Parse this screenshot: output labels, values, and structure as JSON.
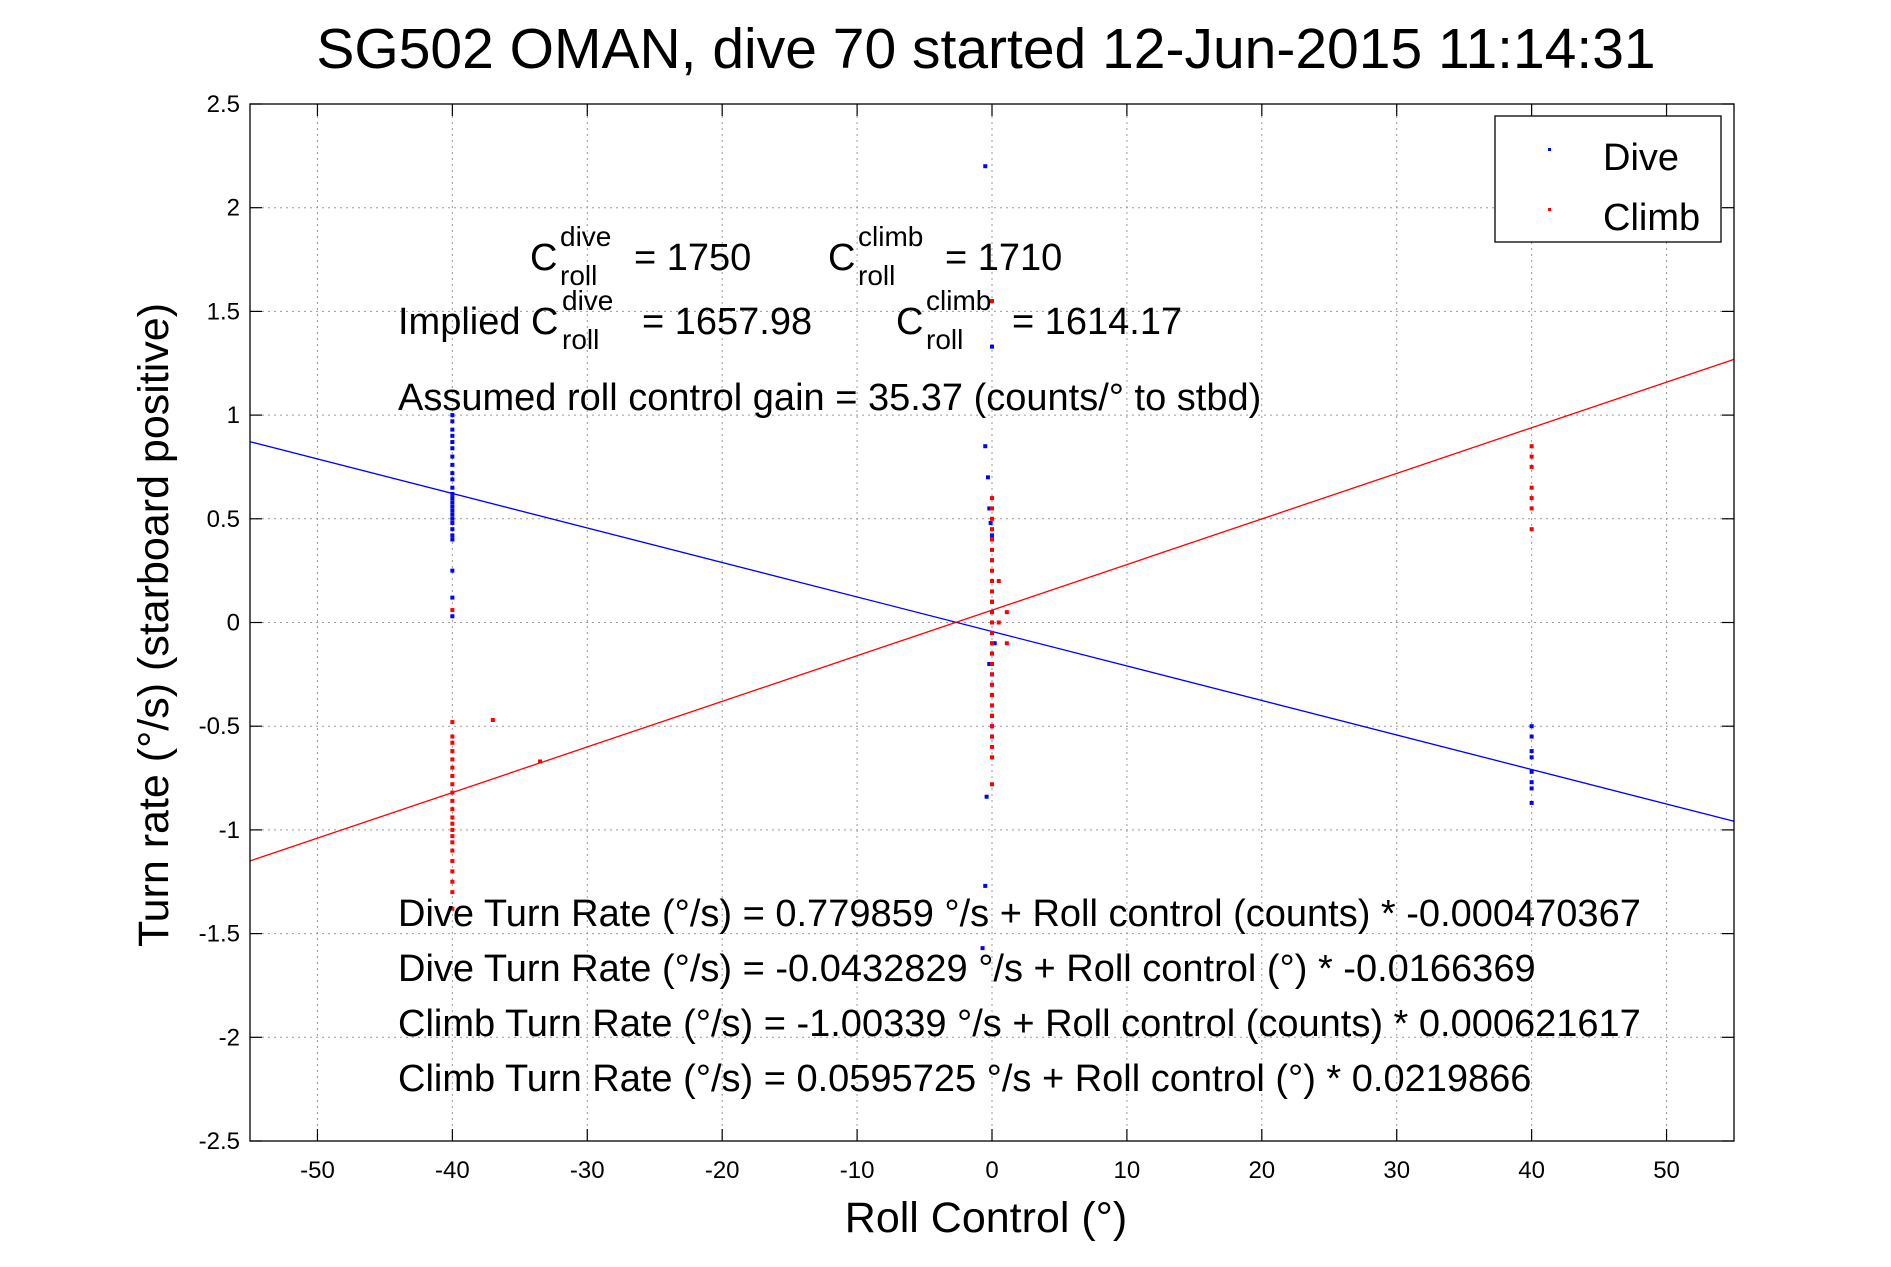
{
  "chart_data": {
    "type": "scatter",
    "title": "SG502 OMAN, dive 70 started 12-Jun-2015 11:14:31",
    "xlabel": "Roll Control (°)",
    "ylabel": "Turn rate (°/s)  (starboard positive)",
    "xlim": [
      -55,
      55
    ],
    "ylim": [
      -2.5,
      2.5
    ],
    "xticks": [
      -50,
      -40,
      -30,
      -20,
      -10,
      0,
      10,
      20,
      30,
      40,
      50
    ],
    "yticks": [
      -2.5,
      -2,
      -1.5,
      -1,
      -0.5,
      0,
      0.5,
      1,
      1.5,
      2,
      2.5
    ],
    "xtick_labels": [
      "-50",
      "-40",
      "-30",
      "-20",
      "-10",
      "0",
      "10",
      "20",
      "30",
      "40",
      "50"
    ],
    "ytick_labels": [
      "-2.5",
      "-2",
      "-1.5",
      "-1",
      "-0.5",
      "0",
      "0.5",
      "1",
      "1.5",
      "2",
      "2.5"
    ],
    "grid": true,
    "legend_position": "top-right",
    "series": [
      {
        "name": "Dive",
        "color": "#0000ff",
        "points": [
          [
            -40,
            1.0
          ],
          [
            -40,
            0.97
          ],
          [
            -40,
            0.93
          ],
          [
            -40,
            0.9
          ],
          [
            -40,
            0.87
          ],
          [
            -40,
            0.84
          ],
          [
            -40,
            0.8
          ],
          [
            -40,
            0.76
          ],
          [
            -40,
            0.72
          ],
          [
            -40,
            0.69
          ],
          [
            -40,
            0.65
          ],
          [
            -40,
            0.62
          ],
          [
            -40,
            0.6
          ],
          [
            -40,
            0.58
          ],
          [
            -40,
            0.56
          ],
          [
            -40,
            0.54
          ],
          [
            -40,
            0.52
          ],
          [
            -40,
            0.5
          ],
          [
            -40,
            0.48
          ],
          [
            -40,
            0.45
          ],
          [
            -40,
            0.42
          ],
          [
            -40,
            0.4
          ],
          [
            -40,
            0.25
          ],
          [
            -40,
            0.12
          ],
          [
            -40,
            0.03
          ],
          [
            -0.5,
            2.2
          ],
          [
            0,
            1.33
          ],
          [
            -0.5,
            0.85
          ],
          [
            -0.3,
            0.7
          ],
          [
            -0.2,
            0.55
          ],
          [
            -0.1,
            0.48
          ],
          [
            0,
            0.42
          ],
          [
            0,
            0.3
          ],
          [
            0,
            0.2
          ],
          [
            0,
            0.1
          ],
          [
            0,
            0.05
          ],
          [
            0,
            0.0
          ],
          [
            0,
            -0.05
          ],
          [
            0,
            -0.1
          ],
          [
            0,
            -0.15
          ],
          [
            0,
            -0.2
          ],
          [
            0,
            -0.25
          ],
          [
            0,
            -0.3
          ],
          [
            0,
            -0.35
          ],
          [
            0,
            -0.4
          ],
          [
            0,
            -0.45
          ],
          [
            0,
            -0.5
          ],
          [
            0,
            -0.55
          ],
          [
            0.2,
            -0.1
          ],
          [
            -0.2,
            -0.2
          ],
          [
            -0.4,
            -0.84
          ],
          [
            -0.5,
            -1.27
          ],
          [
            -0.7,
            -1.57
          ],
          [
            40,
            -0.5
          ],
          [
            40,
            -0.55
          ],
          [
            40,
            -0.62
          ],
          [
            40,
            -0.65
          ],
          [
            40,
            -0.72
          ],
          [
            40,
            -0.77
          ],
          [
            40,
            -0.8
          ],
          [
            40,
            -0.87
          ]
        ]
      },
      {
        "name": "Climb",
        "color": "#ff0000",
        "points": [
          [
            -40,
            0.06
          ],
          [
            -40,
            -0.48
          ],
          [
            -40,
            -0.55
          ],
          [
            -40,
            -0.58
          ],
          [
            -40,
            -0.62
          ],
          [
            -40,
            -0.66
          ],
          [
            -40,
            -0.7
          ],
          [
            -40,
            -0.74
          ],
          [
            -40,
            -0.78
          ],
          [
            -40,
            -0.82
          ],
          [
            -40,
            -0.86
          ],
          [
            -40,
            -0.9
          ],
          [
            -40,
            -0.94
          ],
          [
            -40,
            -0.97
          ],
          [
            -40,
            -1.0
          ],
          [
            -40,
            -1.03
          ],
          [
            -40,
            -1.06
          ],
          [
            -40,
            -1.1
          ],
          [
            -40,
            -1.15
          ],
          [
            -40,
            -1.2
          ],
          [
            -40,
            -1.25
          ],
          [
            -40,
            -1.3
          ],
          [
            -40,
            -1.38
          ],
          [
            -37,
            -0.47
          ],
          [
            -33.5,
            -0.67
          ],
          [
            0,
            1.55
          ],
          [
            0,
            0.6
          ],
          [
            0,
            0.55
          ],
          [
            0,
            0.5
          ],
          [
            0,
            0.45
          ],
          [
            0,
            0.4
          ],
          [
            0,
            0.35
          ],
          [
            0,
            0.3
          ],
          [
            0,
            0.25
          ],
          [
            0,
            0.2
          ],
          [
            0,
            0.15
          ],
          [
            0,
            0.1
          ],
          [
            0,
            0.05
          ],
          [
            0,
            0.0
          ],
          [
            0,
            -0.05
          ],
          [
            0,
            -0.1
          ],
          [
            0,
            -0.15
          ],
          [
            0,
            -0.2
          ],
          [
            0,
            -0.25
          ],
          [
            0,
            -0.3
          ],
          [
            0,
            -0.35
          ],
          [
            0,
            -0.4
          ],
          [
            0,
            -0.45
          ],
          [
            0,
            -0.5
          ],
          [
            0,
            -0.55
          ],
          [
            0,
            -0.6
          ],
          [
            0,
            -0.65
          ],
          [
            0,
            -0.78
          ],
          [
            0.5,
            0.2
          ],
          [
            0.5,
            0.0
          ],
          [
            1.1,
            -0.1
          ],
          [
            1.1,
            0.05
          ],
          [
            40,
            0.85
          ],
          [
            40,
            0.8
          ],
          [
            40,
            0.75
          ],
          [
            40,
            0.65
          ],
          [
            40,
            0.6
          ],
          [
            40,
            0.55
          ],
          [
            40,
            0.45
          ]
        ]
      }
    ],
    "fit_lines": [
      {
        "name": "Dive fit",
        "color": "#0000ff",
        "intercept": -0.0432829,
        "slope": -0.0166369
      },
      {
        "name": "Climb fit",
        "color": "#ff0000",
        "intercept": 0.0595725,
        "slope": 0.0219866
      }
    ],
    "annotations": {
      "c_roll_dive": {
        "prefix": "C",
        "sup": "dive",
        "sub": "roll",
        "value": "= 1750"
      },
      "c_roll_climb": {
        "prefix": "C",
        "sup": "climb",
        "sub": "roll",
        "value": "= 1710"
      },
      "implied_dive": {
        "prefix": "Implied C",
        "sup": "dive",
        "sub": "roll",
        "value": "= 1657.98"
      },
      "implied_climb": {
        "prefix": "C",
        "sup": "climb",
        "sub": "roll",
        "value": "= 1614.17"
      },
      "gain": "Assumed roll control gain = 35.37 (counts/° to stbd)",
      "equations": [
        "Dive Turn Rate (°/s) = 0.779859 °/s + Roll control (counts) * -0.000470367",
        "Dive Turn Rate (°/s) = -0.0432829 °/s + Roll control (°) * -0.0166369",
        "Climb Turn Rate (°/s) = -1.00339 °/s + Roll control (counts) * 0.000621617",
        "Climb Turn Rate (°/s) = 0.0595725 °/s + Roll control (°) * 0.0219866"
      ]
    }
  }
}
